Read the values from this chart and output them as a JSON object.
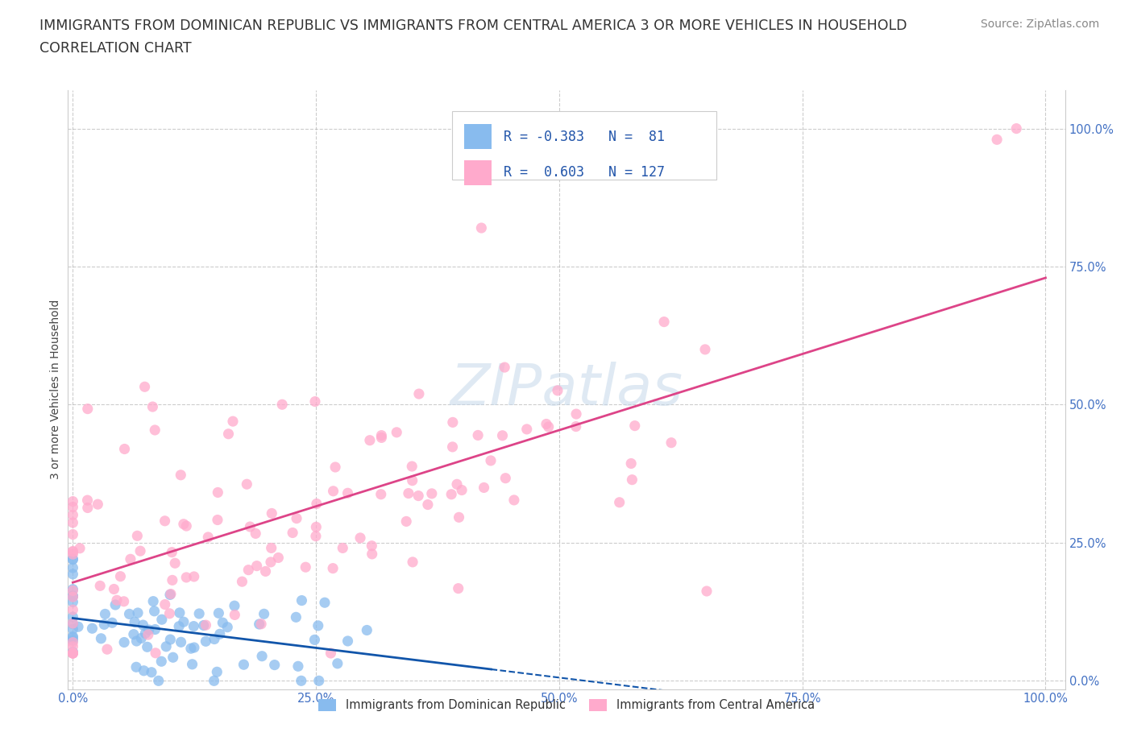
{
  "title_line1": "IMMIGRANTS FROM DOMINICAN REPUBLIC VS IMMIGRANTS FROM CENTRAL AMERICA 3 OR MORE VEHICLES IN HOUSEHOLD",
  "title_line2": "CORRELATION CHART",
  "source": "Source: ZipAtlas.com",
  "ylabel": "3 or more Vehicles in Household",
  "xticks": [
    0.0,
    0.25,
    0.5,
    0.75,
    1.0
  ],
  "yticks": [
    0.0,
    0.25,
    0.5,
    0.75,
    1.0
  ],
  "xtick_labels": [
    "0.0%",
    "25.0%",
    "50.0%",
    "75.0%",
    "100.0%"
  ],
  "ytick_labels": [
    "0.0%",
    "25.0%",
    "50.0%",
    "75.0%",
    "100.0%"
  ],
  "color_blue": "#88bbee",
  "color_pink": "#ffaacc",
  "line_blue": "#1155aa",
  "line_pink": "#dd4488",
  "r_blue": -0.383,
  "n_blue": 81,
  "r_pink": 0.603,
  "n_pink": 127,
  "legend_label_blue": "Immigrants from Dominican Republic",
  "legend_label_pink": "Immigrants from Central America",
  "watermark_text": "ZIPatlas",
  "title_fontsize": 12.5,
  "subtitle_fontsize": 12.5,
  "axis_label_fontsize": 10,
  "tick_label_fontsize": 10.5,
  "legend_fontsize": 10.5,
  "source_fontsize": 10
}
